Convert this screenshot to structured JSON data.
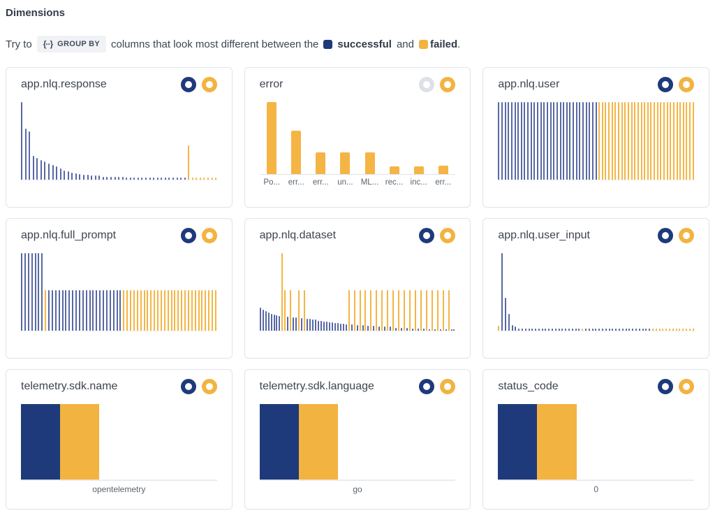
{
  "colors": {
    "navy": "#1e3a7a",
    "bar_blue": "#5868a3",
    "bar_yellow": "#f4b544",
    "yellow": "#f3b340",
    "disabled_toggle": "#dce1e8"
  },
  "header": {
    "title": "Dimensions",
    "hint_pre": "Try to",
    "chip_icon": "{··}",
    "chip_label": "GROUP BY",
    "hint_mid": "columns that look most different between the",
    "series_a": "successful",
    "conjunction": "and",
    "series_b": "failed",
    "period": "."
  },
  "cards": [
    {
      "title": "app.nlq.response",
      "toggles": [
        "blue",
        "yellow"
      ],
      "chart": {
        "type": "hist",
        "bars": [
          [
            "b",
            100
          ],
          [
            "b",
            66
          ],
          [
            "b",
            62
          ],
          [
            "b",
            31
          ],
          [
            "b",
            28
          ],
          [
            "b",
            25
          ],
          [
            "b",
            23
          ],
          [
            "b",
            21
          ],
          [
            "b",
            19
          ],
          [
            "b",
            17
          ],
          [
            "b",
            14
          ],
          [
            "b",
            12
          ],
          [
            "b",
            11
          ],
          [
            "b",
            9
          ],
          [
            "b",
            8
          ],
          [
            "b",
            7
          ],
          [
            "b",
            6
          ],
          [
            "b",
            6
          ],
          [
            "b",
            5
          ],
          [
            "b",
            5
          ],
          [
            "b",
            5
          ],
          [
            "b",
            4,
            6
          ],
          [
            "b",
            3,
            16
          ],
          [
            "y",
            44
          ],
          [
            "y",
            3,
            7
          ]
        ]
      }
    },
    {
      "title": "error",
      "toggles": [
        "disabled",
        "yellow"
      ],
      "chart": {
        "type": "cat",
        "categories": [
          "Po...",
          "err...",
          "err...",
          "un...",
          "ML...",
          "rec...",
          "inc...",
          "err..."
        ],
        "values": [
          100,
          60,
          30,
          30,
          30,
          11,
          11,
          12
        ]
      }
    },
    {
      "title": "app.nlq.user",
      "toggles": [
        "blue",
        "yellow"
      ],
      "chart": {
        "type": "hist",
        "bars": [
          [
            "b",
            100,
            31
          ],
          [
            "y",
            100,
            30
          ]
        ]
      }
    },
    {
      "title": "app.nlq.full_prompt",
      "toggles": [
        "blue",
        "yellow"
      ],
      "chart": {
        "type": "hist",
        "bars": [
          [
            "b",
            100,
            7
          ],
          [
            "y",
            52
          ],
          [
            "b",
            52,
            22
          ],
          [
            "y",
            52,
            28
          ]
        ]
      }
    },
    {
      "title": "app.nlq.dataset",
      "toggles": [
        "blue",
        "yellow"
      ],
      "chart": {
        "type": "hist",
        "bars": [
          [
            "b",
            30
          ],
          [
            "b",
            27
          ],
          [
            "b",
            25
          ],
          [
            "b",
            23
          ],
          [
            "b",
            22
          ],
          [
            "b",
            21
          ],
          [
            "b",
            20
          ],
          [
            "b",
            19
          ],
          [
            "y",
            100
          ],
          [
            "y",
            52
          ],
          [
            "b",
            18
          ],
          [
            "y",
            52
          ],
          [
            "b",
            17
          ],
          [
            "b",
            17
          ],
          [
            "y",
            52
          ],
          [
            "b",
            16
          ],
          [
            "y",
            52
          ],
          [
            "b",
            15
          ],
          [
            "b",
            15
          ],
          [
            "b",
            14
          ],
          [
            "b",
            14
          ],
          [
            "b",
            13
          ],
          [
            "b",
            13
          ],
          [
            "b",
            12
          ],
          [
            "b",
            12
          ],
          [
            "b",
            11
          ],
          [
            "b",
            11
          ],
          [
            "b",
            10
          ],
          [
            "b",
            10
          ],
          [
            "b",
            9
          ],
          [
            "b",
            9
          ],
          [
            "b",
            8
          ],
          [
            "y",
            52
          ],
          [
            "b",
            8
          ],
          [
            "y",
            52
          ],
          [
            "b",
            7
          ],
          [
            "y",
            52
          ],
          [
            "b",
            7
          ],
          [
            "y",
            52
          ],
          [
            "b",
            6
          ],
          [
            "y",
            52
          ],
          [
            "b",
            6
          ],
          [
            "y",
            52
          ],
          [
            "b",
            5
          ],
          [
            "y",
            52
          ],
          [
            "b",
            5
          ],
          [
            "y",
            52
          ],
          [
            "b",
            5
          ],
          [
            "y",
            52
          ],
          [
            "b",
            4
          ],
          [
            "y",
            52
          ],
          [
            "b",
            4
          ],
          [
            "y",
            52
          ],
          [
            "b",
            4
          ],
          [
            "y",
            52
          ],
          [
            "b",
            3
          ],
          [
            "y",
            52
          ],
          [
            "b",
            3
          ],
          [
            "y",
            52
          ],
          [
            "b",
            3
          ],
          [
            "y",
            52
          ],
          [
            "b",
            2
          ],
          [
            "y",
            52
          ],
          [
            "b",
            2
          ],
          [
            "y",
            52
          ],
          [
            "b",
            2
          ],
          [
            "y",
            52
          ],
          [
            "b",
            2
          ],
          [
            "y",
            52
          ],
          [
            "b",
            2
          ],
          [
            "b",
            2
          ]
        ]
      }
    },
    {
      "title": "app.nlq.user_input",
      "toggles": [
        "blue",
        "yellow"
      ],
      "chart": {
        "type": "hist",
        "bars": [
          [
            "y",
            6
          ],
          [
            "b",
            100
          ],
          [
            "b",
            42
          ],
          [
            "b",
            22
          ],
          [
            "b",
            7
          ],
          [
            "b",
            5
          ],
          [
            "b",
            3,
            19
          ],
          [
            "y",
            3
          ],
          [
            "b",
            3,
            20
          ],
          [
            "y",
            3,
            13
          ]
        ]
      }
    },
    {
      "title": "telemetry.sdk.name",
      "toggles": [
        "blue",
        "yellow"
      ],
      "chart": {
        "type": "block",
        "axis_label": "opentelemetry"
      }
    },
    {
      "title": "telemetry.sdk.language",
      "toggles": [
        "blue",
        "yellow"
      ],
      "chart": {
        "type": "block",
        "axis_label": "go"
      }
    },
    {
      "title": "status_code",
      "toggles": [
        "blue",
        "yellow"
      ],
      "chart": {
        "type": "block",
        "axis_label": "0"
      }
    }
  ]
}
